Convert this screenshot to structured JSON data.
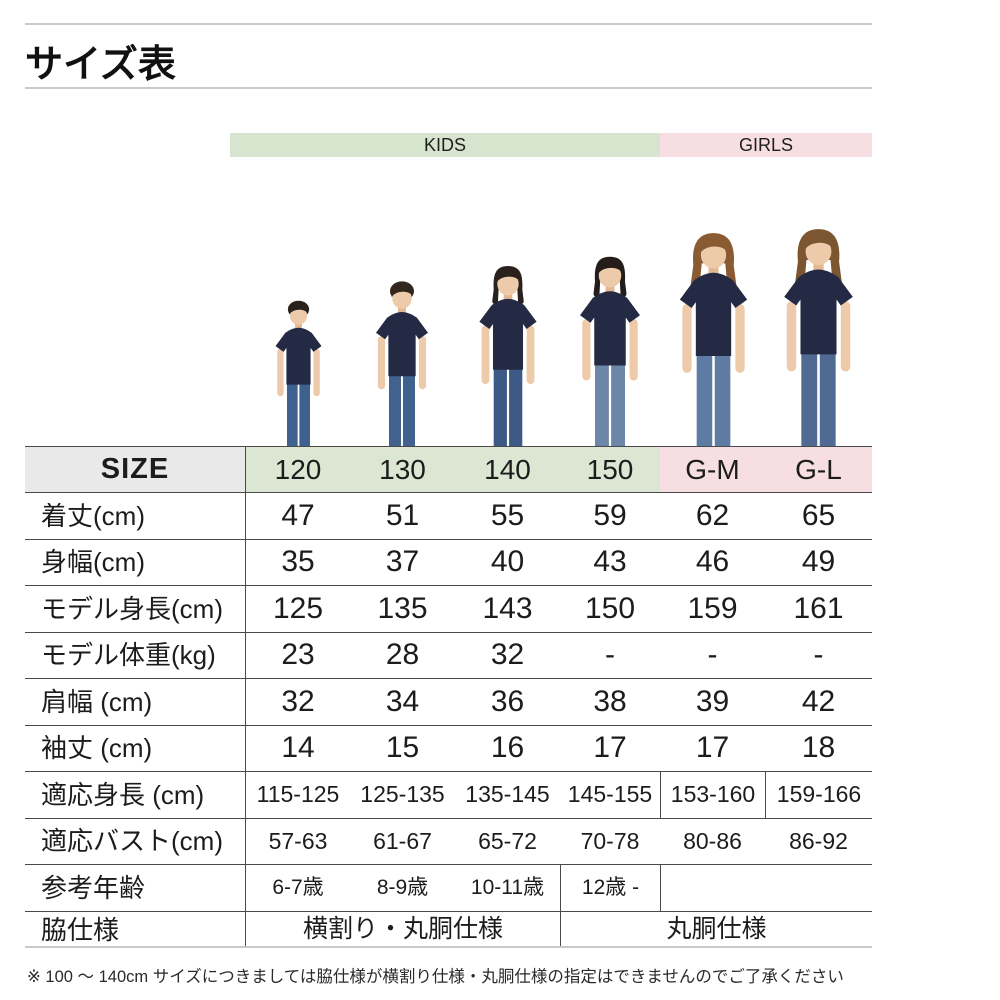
{
  "page": {
    "title": "サイズ表",
    "footnote": "※ 100 ～ 140cm サイズにつきましては脇仕様が横割り仕様・丸胴仕様の指定はできませんのでご了承ください"
  },
  "groups": {
    "kids_label": "KIDS",
    "girls_label": "GIRLS"
  },
  "colors": {
    "kids_band": "#d7e4ce",
    "girls_band": "#f6dee3",
    "corner_bg": "#e9e9e9",
    "table_line": "#4a4a4a",
    "rule_line": "#c9c9c9",
    "shirt_navy": "#242944"
  },
  "size_table": {
    "corner_label": "SIZE",
    "columns": [
      "120",
      "130",
      "140",
      "150",
      "G-M",
      "G-L"
    ],
    "rows": [
      {
        "label": "着丈(cm)",
        "values": [
          "47",
          "51",
          "55",
          "59",
          "62",
          "65"
        ]
      },
      {
        "label": "身幅(cm)",
        "values": [
          "35",
          "37",
          "40",
          "43",
          "46",
          "49"
        ]
      },
      {
        "label": "モデル身長(cm)",
        "values": [
          "125",
          "135",
          "143",
          "150",
          "159",
          "161"
        ]
      },
      {
        "label": "モデル体重(kg)",
        "values": [
          "23",
          "28",
          "32",
          "-",
          "-",
          "-"
        ]
      },
      {
        "label": "肩幅 (cm)",
        "values": [
          "32",
          "34",
          "36",
          "38",
          "39",
          "42"
        ]
      },
      {
        "label": "袖丈 (cm)",
        "values": [
          "14",
          "15",
          "16",
          "17",
          "17",
          "18"
        ]
      },
      {
        "label": "適応身長 (cm)",
        "values": [
          "115-125",
          "125-135",
          "135-145",
          "145-155",
          "153-160",
          "159-166"
        ]
      },
      {
        "label": "適応バスト(cm)",
        "values": [
          "57-63",
          "61-67",
          "65-72",
          "70-78",
          "80-86",
          "86-92"
        ]
      },
      {
        "label": "参考年齢",
        "values": [
          "6-7歳",
          "8-9歳",
          "10-11歳",
          "12歳 -",
          "",
          ""
        ]
      },
      {
        "label": "脇仕様",
        "merged": [
          "横割り・丸胴仕様",
          "丸胴仕様"
        ]
      }
    ]
  },
  "models": [
    {
      "column": "120",
      "person": "boy"
    },
    {
      "column": "130",
      "person": "boy"
    },
    {
      "column": "140",
      "person": "girl"
    },
    {
      "column": "150",
      "person": "girl"
    },
    {
      "column": "G-M",
      "person": "woman"
    },
    {
      "column": "G-L",
      "person": "woman"
    }
  ]
}
